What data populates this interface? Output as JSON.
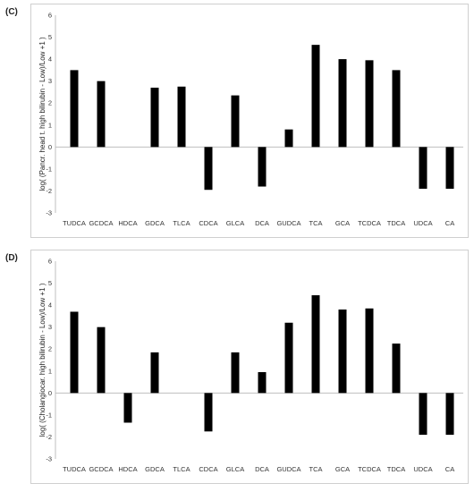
{
  "chart_data": [
    {
      "type": "bar",
      "panel_label": "(C)",
      "ylabel": "log( (Pancr. head t. high bilirubin - Low)/Low +1 )",
      "categories": [
        "TUDCA",
        "GCDCA",
        "HDCA",
        "GDCA",
        "TLCA",
        "CDCA",
        "GLCA",
        "DCA",
        "GUDCA",
        "TCA",
        "GCA",
        "TCDCA",
        "TDCA",
        "UDCA",
        "CA"
      ],
      "values": [
        3.5,
        3.0,
        0,
        2.7,
        2.75,
        -1.95,
        2.35,
        -1.8,
        0.8,
        4.65,
        4.0,
        3.95,
        3.5,
        -1.9,
        -1.9
      ],
      "ylim": [
        -3,
        6
      ],
      "yticks": [
        "-3",
        "-2",
        "-1",
        "0",
        "1",
        "2",
        "3",
        "4",
        "5",
        "6"
      ],
      "grid": false,
      "bar_color": "#000000"
    },
    {
      "type": "bar",
      "panel_label": "(D)",
      "ylabel": "log( (Cholangiocar. high bilirubin - Low)/Low +1 )",
      "categories": [
        "TUDCA",
        "GCDCA",
        "HDCA",
        "GDCA",
        "TLCA",
        "CDCA",
        "GLCA",
        "DCA",
        "GUDCA",
        "TCA",
        "GCA",
        "TCDCA",
        "TDCA",
        "UDCA",
        "CA"
      ],
      "values": [
        3.7,
        3.0,
        -1.35,
        1.85,
        0,
        -1.75,
        1.85,
        0.95,
        3.2,
        4.45,
        3.8,
        3.85,
        2.25,
        -1.9,
        -1.9
      ],
      "ylim": [
        -3,
        6
      ],
      "yticks": [
        "-3",
        "-2",
        "-1",
        "0",
        "1",
        "2",
        "3",
        "4",
        "5",
        "6"
      ],
      "grid": false,
      "bar_color": "#000000"
    }
  ]
}
